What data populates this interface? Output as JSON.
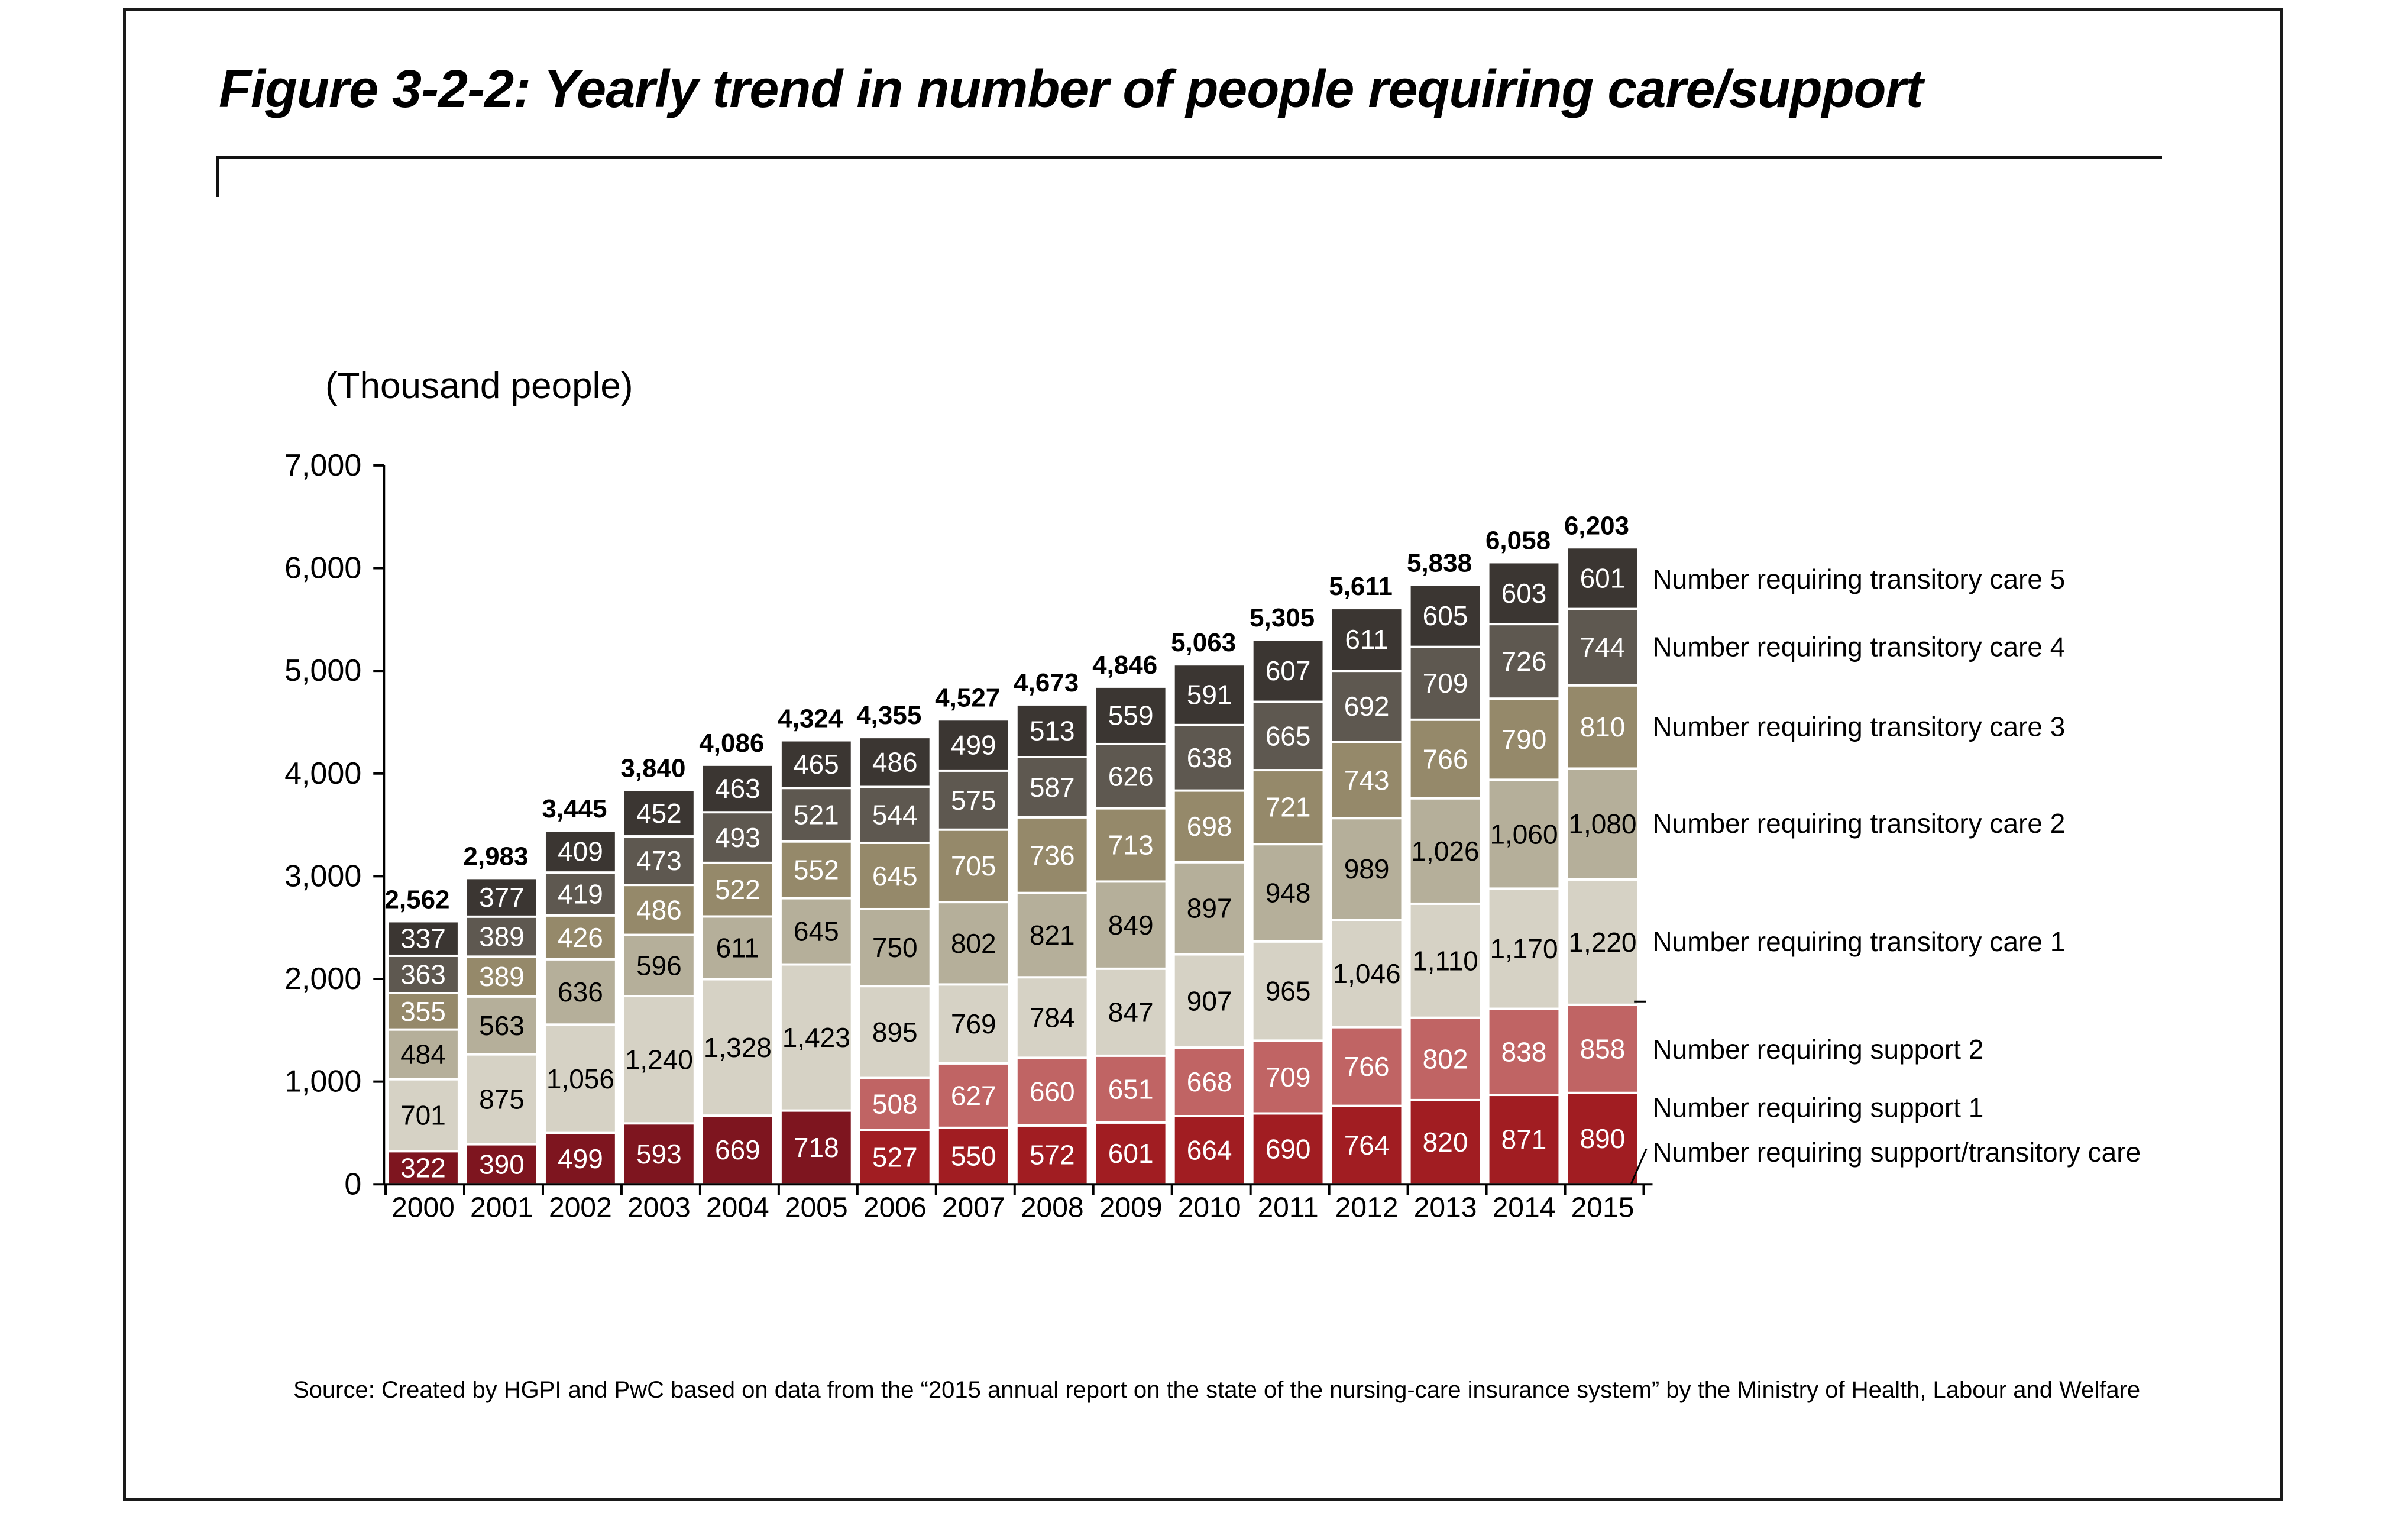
{
  "figure": {
    "title": "Figure 3-2-2: Yearly trend in number of people requiring care/support",
    "unit_label": "(Thousand people)",
    "source": "Source: Created by HGPI and PwC based on data from the “2015 annual report on the state of the nursing-care insurance system” by the Ministry of Health, Labour and Welfare"
  },
  "chart_data": {
    "type": "bar",
    "stacked": true,
    "title": "Figure 3-2-2: Yearly trend in number of people requiring care/support",
    "xlabel": "",
    "ylabel": "(Thousand people)",
    "ylim": [
      0,
      7000
    ],
    "yticks": [
      0,
      1000,
      2000,
      3000,
      4000,
      5000,
      6000,
      7000
    ],
    "ytick_labels": [
      "0",
      "1,000",
      "2,000",
      "3,000",
      "4,000",
      "5,000",
      "6,000",
      "7,000"
    ],
    "grid": false,
    "legend_position": "right",
    "categories": [
      "2000",
      "2001",
      "2002",
      "2003",
      "2004",
      "2005",
      "2006",
      "2007",
      "2008",
      "2009",
      "2010",
      "2011",
      "2012",
      "2013",
      "2014",
      "2015"
    ],
    "totals": [
      2562,
      2983,
      3445,
      3840,
      4086,
      4324,
      4355,
      4527,
      4673,
      4846,
      5063,
      5305,
      5611,
      5838,
      6058,
      6203
    ],
    "totals_labels": [
      "2,562",
      "2,983",
      "3,445",
      "3,840",
      "4,086",
      "4,324",
      "4,355",
      "4,527",
      "4,673",
      "4,846",
      "5,063",
      "5,305",
      "5,611",
      "5,838",
      "6,058",
      "6,203"
    ],
    "series": [
      {
        "name": "Number requiring support/transitory care",
        "legend": "Number requiring support/transitory care",
        "color": "#a11d22",
        "color_pre2006": "#7e151f",
        "label_color": "#ffffff",
        "values": [
          322,
          390,
          499,
          593,
          669,
          718,
          527,
          550,
          572,
          601,
          664,
          690,
          764,
          820,
          871,
          890
        ]
      },
      {
        "name": "Number requiring support 2",
        "legend": "Number requiring support 2",
        "color": "#c06464",
        "label_color": "#ffffff",
        "values": [
          null,
          null,
          null,
          null,
          null,
          null,
          508,
          627,
          660,
          651,
          668,
          709,
          766,
          802,
          838,
          858
        ]
      },
      {
        "name": "Number requiring transitory care 1",
        "legend": "Number requiring transitory care 1",
        "color": "#d6d2c5",
        "label_color": "#000000",
        "values": [
          701,
          875,
          1056,
          1240,
          1328,
          1423,
          895,
          769,
          784,
          847,
          907,
          965,
          1046,
          1110,
          1170,
          1220
        ]
      },
      {
        "name": "Number requiring transitory care 2",
        "legend": "Number requiring transitory care 2",
        "color": "#b5af9a",
        "label_color": "#000000",
        "values": [
          484,
          563,
          636,
          596,
          611,
          645,
          750,
          802,
          821,
          849,
          897,
          948,
          989,
          1026,
          1060,
          1080
        ]
      },
      {
        "name": "Number requiring transitory care 3",
        "legend": "Number requiring transitory care 3",
        "color": "#95896a",
        "label_color": "#ffffff",
        "values": [
          355,
          389,
          426,
          486,
          522,
          552,
          645,
          705,
          736,
          713,
          698,
          721,
          743,
          766,
          790,
          810
        ]
      },
      {
        "name": "Number requiring transitory care 4",
        "legend": "Number requiring transitory care 4",
        "color": "#5e5850",
        "label_color": "#ffffff",
        "values": [
          363,
          389,
          419,
          473,
          493,
          521,
          544,
          575,
          587,
          626,
          638,
          665,
          692,
          709,
          726,
          744
        ]
      },
      {
        "name": "Number requiring transitory care 5",
        "legend": "Number requiring transitory care 5",
        "color": "#3b3632",
        "label_color": "#ffffff",
        "values": [
          337,
          377,
          409,
          452,
          463,
          465,
          486,
          499,
          513,
          559,
          591,
          607,
          611,
          605,
          603,
          601
        ]
      }
    ],
    "legend_order_top_to_bottom": [
      "Number requiring transitory care 5",
      "Number requiring transitory care 4",
      "Number requiring transitory care 3",
      "Number requiring transitory care 2",
      "Number requiring transitory care 1",
      "Number requiring support 2",
      "Number requiring support 1",
      "Number requiring support/transitory care"
    ]
  }
}
